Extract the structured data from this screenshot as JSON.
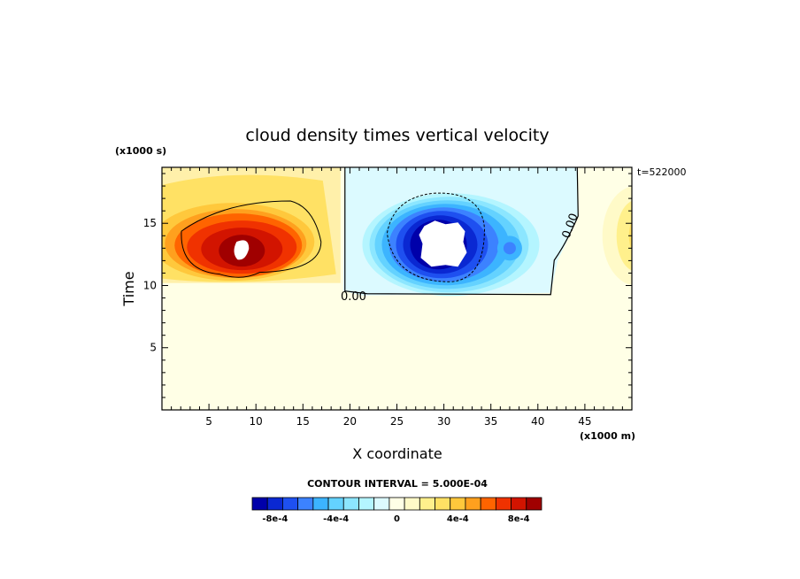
{
  "chart_data": {
    "type": "heatmap",
    "title": "cloud density times vertical velocity",
    "xlabel": "X coordinate",
    "ylabel": "Time",
    "x_scale_note": "(x1000 m)",
    "y_scale_note": "(x1000 s)",
    "timestamp_label": "t=522000",
    "xlim": [
      0,
      50
    ],
    "ylim": [
      0,
      19.5
    ],
    "x_ticks": [
      5,
      10,
      15,
      20,
      25,
      30,
      35,
      40,
      45
    ],
    "y_ticks": [
      5,
      10,
      15
    ],
    "contour_labels": [
      "0.00",
      "0.00"
    ],
    "contour_interval_text": "CONTOUR INTERVAL = 5.000E-04",
    "colorbar": {
      "colors": [
        "#0000aa",
        "#0a28d2",
        "#1e50f0",
        "#3c82ff",
        "#3cb4ff",
        "#64d2ff",
        "#8ce6ff",
        "#b4f5ff",
        "#dcfaff",
        "#ffffe6",
        "#fffac8",
        "#fff08c",
        "#ffe164",
        "#ffc83c",
        "#ffa01e",
        "#ff6400",
        "#f03200",
        "#d21400",
        "#a00000"
      ],
      "tick_labels": [
        "-8e-4",
        "-4e-4",
        "0",
        "4e-4",
        "8e-4"
      ],
      "tick_values": [
        -0.0008,
        -0.0004,
        0,
        0.0004,
        0.0008
      ]
    },
    "features": [
      {
        "sign": "positive",
        "x_range": [
          0,
          19
        ],
        "y_range": [
          10.2,
          19.5
        ],
        "peak_x": 8.5,
        "peak_y": 12.8,
        "peak_value_above": 0.001
      },
      {
        "sign": "negative",
        "x_range": [
          19,
          44
        ],
        "y_range": [
          9.2,
          19.5
        ],
        "peak_x": 29.8,
        "peak_y": 13.5,
        "peak_value_below": -0.001
      },
      {
        "sign": "positive",
        "x_range": [
          46,
          50
        ],
        "y_range": [
          10,
          18
        ],
        "peak_x": 49.5,
        "peak_y": 14
      }
    ]
  }
}
